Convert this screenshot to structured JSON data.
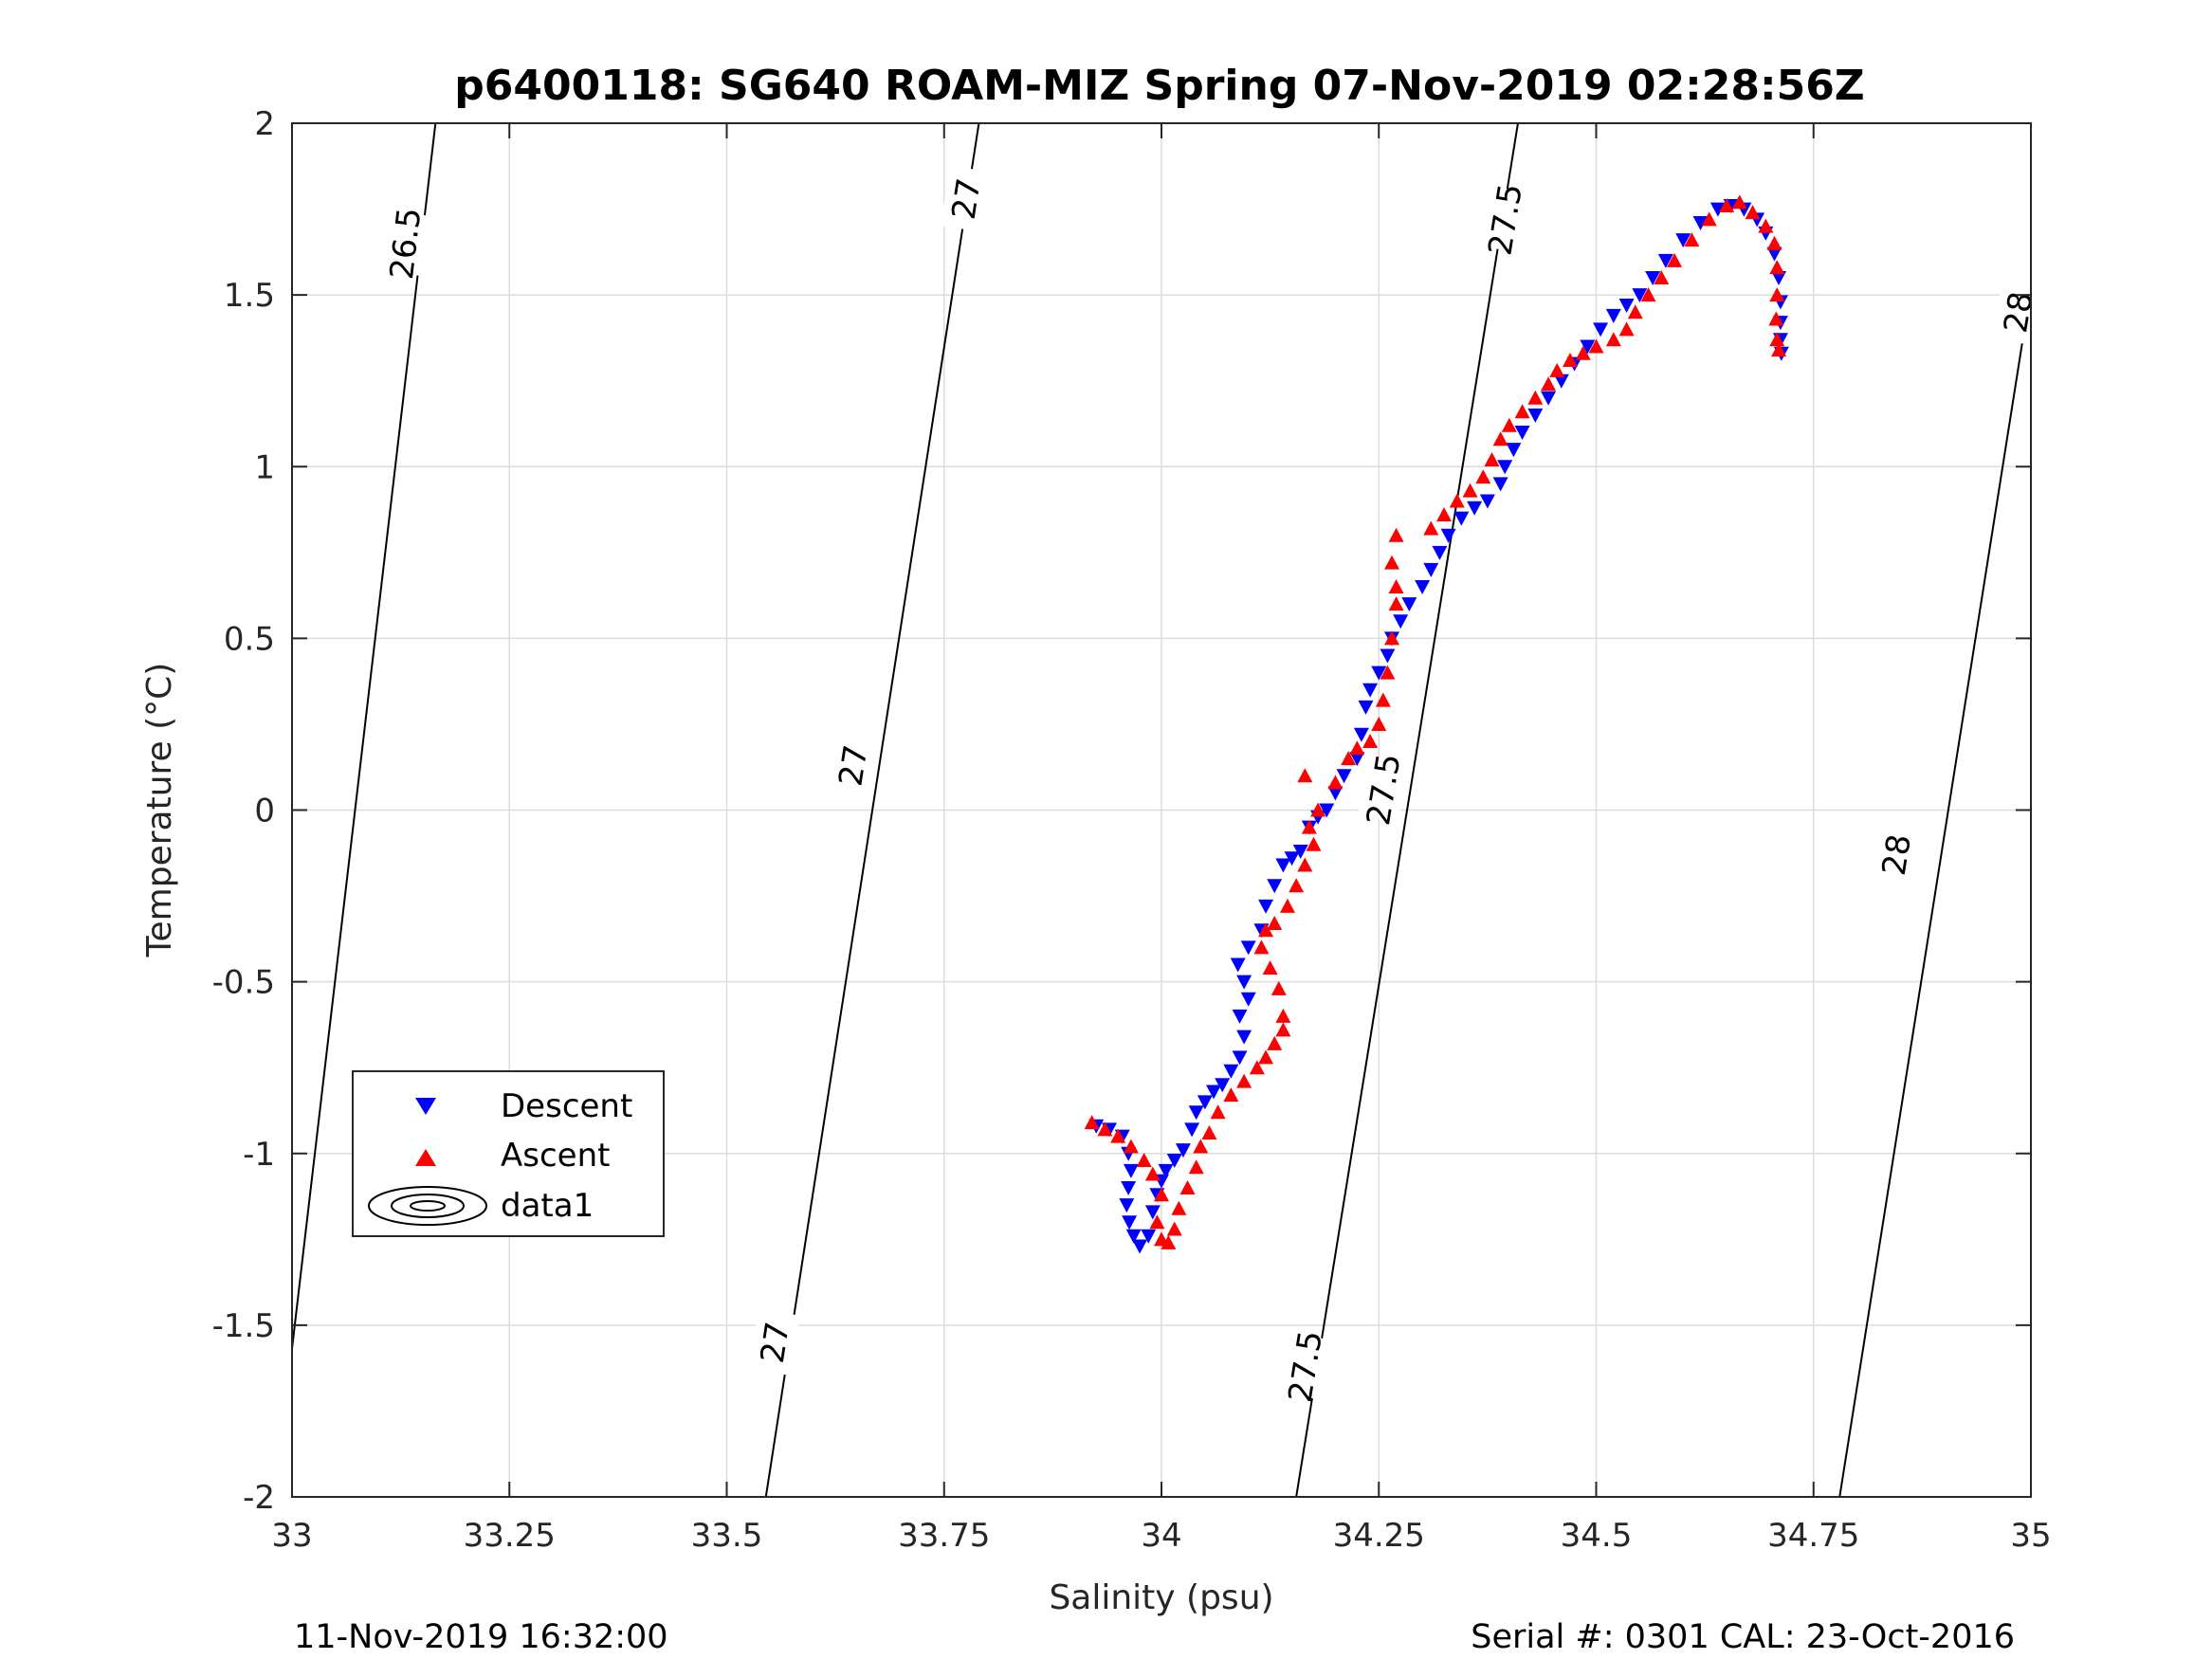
{
  "title": "p6400118: SG640 ROAM-MIZ Spring 07-Nov-2019 02:28:56Z",
  "footer_left": "11-Nov-2019 16:32:00",
  "footer_right": "Serial #: 0301  CAL: 23-Oct-2016",
  "chart_data": {
    "type": "scatter",
    "title": "p6400118: SG640 ROAM-MIZ Spring 07-Nov-2019 02:28:56Z",
    "xlabel": "Salinity (psu)",
    "ylabel": "Temperature (°C)",
    "xlim": [
      33,
      35
    ],
    "ylim": [
      -2,
      2
    ],
    "xticks": [
      33,
      33.25,
      33.5,
      33.75,
      34,
      34.25,
      34.5,
      34.75,
      35
    ],
    "xtick_labels": [
      "33",
      "33.25",
      "33.5",
      "33.75",
      "34",
      "34.25",
      "34.5",
      "34.75",
      "35"
    ],
    "yticks": [
      -2,
      -1.5,
      -1,
      -0.5,
      0,
      0.5,
      1,
      1.5,
      2
    ],
    "ytick_labels": [
      "-2",
      "-1.5",
      "-1",
      "-0.5",
      "0",
      "0.5",
      "1",
      "1.5",
      "2"
    ],
    "grid": true,
    "legend_position": "bottom-left",
    "legend": [
      "Descent",
      "Ascent",
      "data1"
    ],
    "series": [
      {
        "name": "Descent",
        "marker": "triangle-down",
        "color": "#0000ff",
        "points": [
          [
            33.925,
            -0.92
          ],
          [
            33.94,
            -0.93
          ],
          [
            33.955,
            -0.95
          ],
          [
            33.962,
            -1.0
          ],
          [
            33.965,
            -1.05
          ],
          [
            33.962,
            -1.1
          ],
          [
            33.96,
            -1.15
          ],
          [
            33.963,
            -1.2
          ],
          [
            33.968,
            -1.24
          ],
          [
            33.975,
            -1.27
          ],
          [
            33.985,
            -1.24
          ],
          [
            33.99,
            -1.17
          ],
          [
            33.995,
            -1.12
          ],
          [
            34.0,
            -1.08
          ],
          [
            34.005,
            -1.05
          ],
          [
            34.015,
            -1.02
          ],
          [
            34.025,
            -0.99
          ],
          [
            34.035,
            -0.93
          ],
          [
            34.04,
            -0.88
          ],
          [
            34.05,
            -0.85
          ],
          [
            34.06,
            -0.82
          ],
          [
            34.07,
            -0.8
          ],
          [
            34.08,
            -0.76
          ],
          [
            34.09,
            -0.72
          ],
          [
            34.095,
            -0.66
          ],
          [
            34.09,
            -0.6
          ],
          [
            34.1,
            -0.55
          ],
          [
            34.095,
            -0.5
          ],
          [
            34.088,
            -0.45
          ],
          [
            34.1,
            -0.4
          ],
          [
            34.115,
            -0.35
          ],
          [
            34.12,
            -0.28
          ],
          [
            34.13,
            -0.22
          ],
          [
            34.14,
            -0.16
          ],
          [
            34.15,
            -0.14
          ],
          [
            34.16,
            -0.12
          ],
          [
            34.17,
            -0.05
          ],
          [
            34.18,
            -0.02
          ],
          [
            34.19,
            0.0
          ],
          [
            34.2,
            0.05
          ],
          [
            34.21,
            0.1
          ],
          [
            34.225,
            0.15
          ],
          [
            34.23,
            0.22
          ],
          [
            34.235,
            0.3
          ],
          [
            34.24,
            0.35
          ],
          [
            34.25,
            0.4
          ],
          [
            34.26,
            0.45
          ],
          [
            34.265,
            0.5
          ],
          [
            34.275,
            0.55
          ],
          [
            34.285,
            0.6
          ],
          [
            34.3,
            0.65
          ],
          [
            34.31,
            0.7
          ],
          [
            34.32,
            0.75
          ],
          [
            34.33,
            0.8
          ],
          [
            34.345,
            0.85
          ],
          [
            34.36,
            0.88
          ],
          [
            34.375,
            0.9
          ],
          [
            34.39,
            0.95
          ],
          [
            34.395,
            1.0
          ],
          [
            34.405,
            1.05
          ],
          [
            34.415,
            1.1
          ],
          [
            34.43,
            1.15
          ],
          [
            34.445,
            1.2
          ],
          [
            34.46,
            1.25
          ],
          [
            34.475,
            1.3
          ],
          [
            34.49,
            1.35
          ],
          [
            34.505,
            1.4
          ],
          [
            34.52,
            1.44
          ],
          [
            34.535,
            1.47
          ],
          [
            34.55,
            1.5
          ],
          [
            34.565,
            1.55
          ],
          [
            34.58,
            1.6
          ],
          [
            34.6,
            1.66
          ],
          [
            34.62,
            1.71
          ],
          [
            34.64,
            1.75
          ],
          [
            34.655,
            1.76
          ],
          [
            34.67,
            1.75
          ],
          [
            34.685,
            1.72
          ],
          [
            34.695,
            1.68
          ],
          [
            34.705,
            1.62
          ],
          [
            34.71,
            1.55
          ],
          [
            34.712,
            1.48
          ],
          [
            34.712,
            1.42
          ],
          [
            34.712,
            1.37
          ],
          [
            34.713,
            1.33
          ]
        ]
      },
      {
        "name": "Ascent",
        "marker": "triangle-up",
        "color": "#ff0000",
        "points": [
          [
            33.92,
            -0.91
          ],
          [
            33.935,
            -0.93
          ],
          [
            33.95,
            -0.95
          ],
          [
            33.965,
            -0.98
          ],
          [
            33.98,
            -1.02
          ],
          [
            33.99,
            -1.06
          ],
          [
            34.0,
            -1.12
          ],
          [
            33.995,
            -1.2
          ],
          [
            34.0,
            -1.25
          ],
          [
            34.008,
            -1.26
          ],
          [
            34.015,
            -1.22
          ],
          [
            34.02,
            -1.16
          ],
          [
            34.03,
            -1.1
          ],
          [
            34.04,
            -1.04
          ],
          [
            34.045,
            -0.98
          ],
          [
            34.055,
            -0.94
          ],
          [
            34.065,
            -0.88
          ],
          [
            34.08,
            -0.83
          ],
          [
            34.095,
            -0.79
          ],
          [
            34.11,
            -0.75
          ],
          [
            34.12,
            -0.72
          ],
          [
            34.13,
            -0.68
          ],
          [
            34.14,
            -0.64
          ],
          [
            34.14,
            -0.6
          ],
          [
            34.135,
            -0.52
          ],
          [
            34.125,
            -0.46
          ],
          [
            34.115,
            -0.4
          ],
          [
            34.12,
            -0.35
          ],
          [
            34.13,
            -0.33
          ],
          [
            34.145,
            -0.28
          ],
          [
            34.155,
            -0.22
          ],
          [
            34.165,
            -0.16
          ],
          [
            34.175,
            -0.1
          ],
          [
            34.17,
            -0.05
          ],
          [
            34.165,
            0.1
          ],
          [
            34.18,
            0.0
          ],
          [
            34.2,
            0.08
          ],
          [
            34.215,
            0.15
          ],
          [
            34.225,
            0.18
          ],
          [
            34.24,
            0.2
          ],
          [
            34.25,
            0.25
          ],
          [
            34.255,
            0.32
          ],
          [
            34.26,
            0.4
          ],
          [
            34.265,
            0.5
          ],
          [
            34.27,
            0.6
          ],
          [
            34.27,
            0.65
          ],
          [
            34.265,
            0.72
          ],
          [
            34.27,
            0.8
          ],
          [
            34.31,
            0.82
          ],
          [
            34.325,
            0.86
          ],
          [
            34.34,
            0.9
          ],
          [
            34.355,
            0.93
          ],
          [
            34.37,
            0.97
          ],
          [
            34.38,
            1.02
          ],
          [
            34.39,
            1.08
          ],
          [
            34.4,
            1.12
          ],
          [
            34.415,
            1.16
          ],
          [
            34.43,
            1.2
          ],
          [
            34.445,
            1.24
          ],
          [
            34.455,
            1.28
          ],
          [
            34.47,
            1.31
          ],
          [
            34.485,
            1.33
          ],
          [
            34.5,
            1.35
          ],
          [
            34.52,
            1.37
          ],
          [
            34.535,
            1.4
          ],
          [
            34.545,
            1.45
          ],
          [
            34.56,
            1.5
          ],
          [
            34.575,
            1.55
          ],
          [
            34.59,
            1.6
          ],
          [
            34.61,
            1.66
          ],
          [
            34.63,
            1.72
          ],
          [
            34.65,
            1.76
          ],
          [
            34.665,
            1.77
          ],
          [
            34.68,
            1.74
          ],
          [
            34.695,
            1.7
          ],
          [
            34.705,
            1.65
          ],
          [
            34.708,
            1.58
          ],
          [
            34.708,
            1.5
          ],
          [
            34.707,
            1.43
          ],
          [
            34.708,
            1.37
          ],
          [
            34.71,
            1.34
          ]
        ]
      }
    ],
    "contours": [
      {
        "name": "data1",
        "level": "26.5",
        "s_at_t2": 33.165,
        "s_at_tm2": 32.98,
        "labels": [
          [
            33.13,
            1.65
          ]
        ]
      },
      {
        "name": "data1",
        "level": "27",
        "s_at_t2": 33.79,
        "s_at_tm2": 33.545,
        "labels": [
          [
            33.775,
            1.78
          ],
          [
            33.645,
            0.13
          ],
          [
            33.555,
            -1.55
          ]
        ]
      },
      {
        "name": "data1",
        "level": "27.5",
        "s_at_t2": 34.41,
        "s_at_tm2": 34.155,
        "labels": [
          [
            34.395,
            1.72
          ],
          [
            34.255,
            0.06
          ],
          [
            34.165,
            -1.62
          ]
        ]
      },
      {
        "name": "data1",
        "level": "28",
        "s_at_t2": 35.03,
        "s_at_tm2": 34.78,
        "labels": [
          [
            34.985,
            1.45
          ],
          [
            34.845,
            -0.13
          ]
        ]
      }
    ]
  }
}
